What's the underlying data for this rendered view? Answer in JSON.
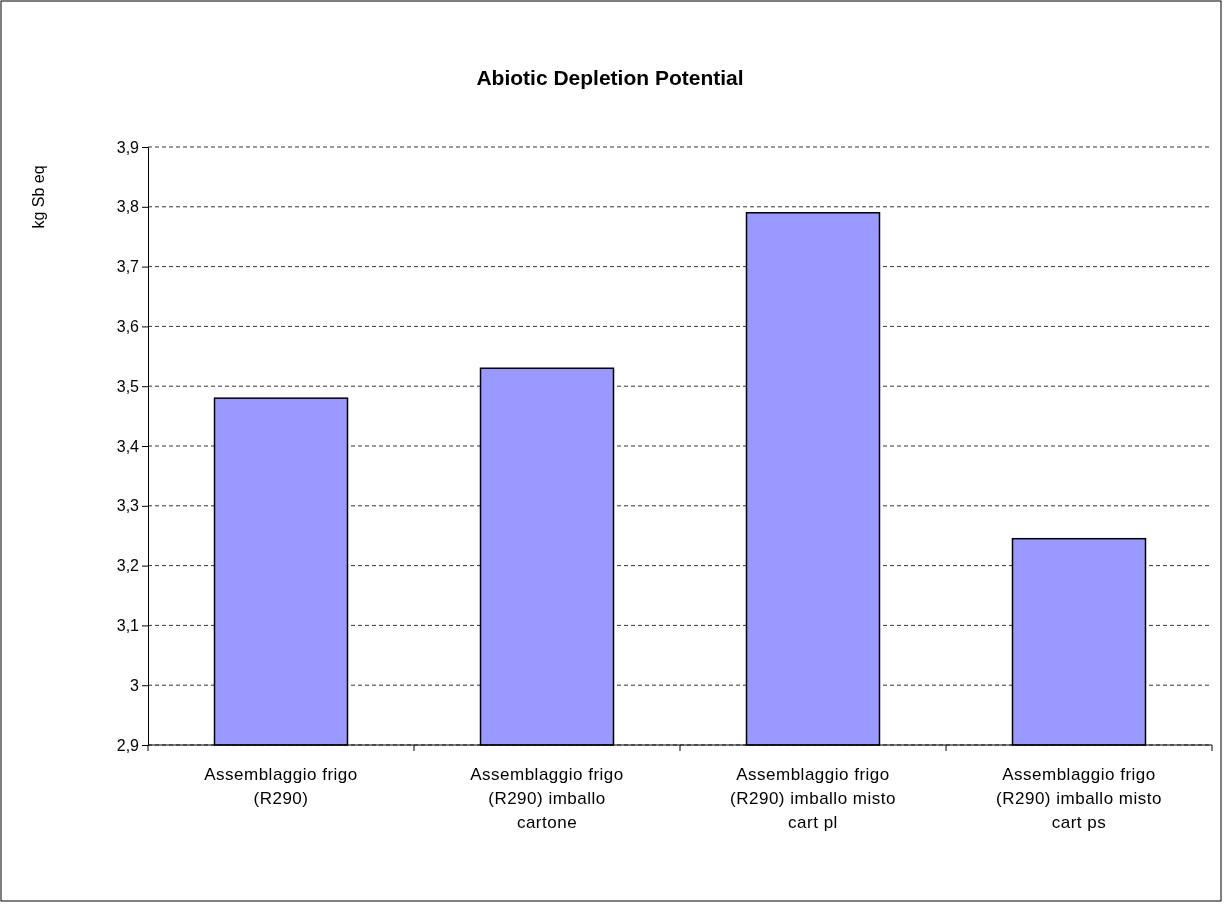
{
  "chart_data": {
    "type": "bar",
    "title": "Abiotic Depletion Potential",
    "ylabel": "kg Sb eq",
    "categories": [
      "Assemblaggio frigo (R290)",
      "Assemblaggio frigo (R290) imballo cartone",
      "Assemblaggio frigo (R290) imballo misto cart pl",
      "Assemblaggio frigo (R290) imballo misto cart ps"
    ],
    "values": [
      3.48,
      3.53,
      3.79,
      3.245
    ],
    "color": "#9999ff",
    "ylim": [
      2.9,
      3.9
    ],
    "yticks": [
      {
        "value": 2.9,
        "label": "2,9"
      },
      3,
      {
        "value": 3.1,
        "label": "3,1"
      },
      {
        "value": 3.2,
        "label": "3,2"
      },
      {
        "value": 3.3,
        "label": "3,3"
      },
      {
        "value": 3.4,
        "label": "3,4"
      },
      {
        "value": 3.5,
        "label": "3,5"
      },
      {
        "value": 3.6,
        "label": "3,6"
      },
      {
        "value": 3.7,
        "label": "3,7"
      },
      {
        "value": 3.8,
        "label": "3,8"
      },
      {
        "value": 3.9,
        "label": "3,9"
      }
    ],
    "grid": "y"
  }
}
